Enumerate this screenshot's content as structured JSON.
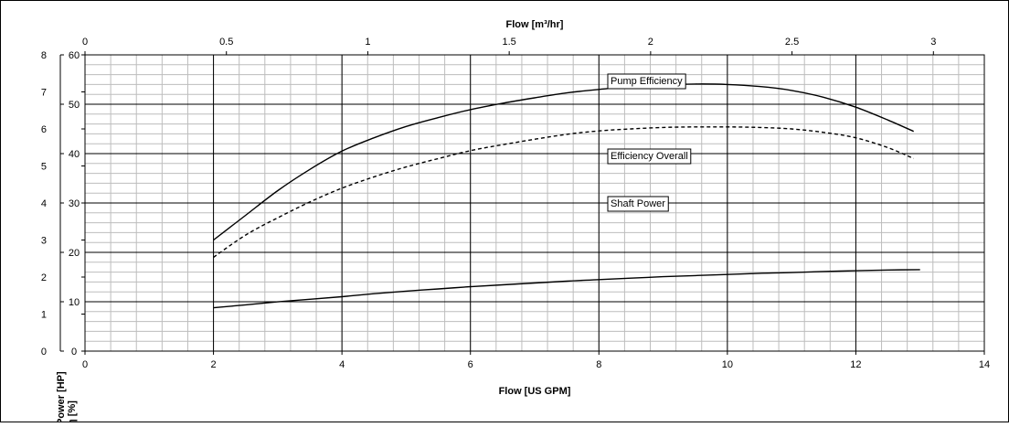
{
  "chart_data": {
    "type": "line",
    "title": "",
    "x_axis_bottom": {
      "label": "Flow [US GPM]",
      "range": [
        0,
        14
      ],
      "ticks": [
        "0",
        "2",
        "4",
        "6",
        "8",
        "10",
        "12",
        "14"
      ]
    },
    "x_axis_top": {
      "label": "Flow [m³/hr]",
      "range": [
        0,
        3.18
      ],
      "ticks": [
        "0",
        "0.5",
        "1",
        "1.5",
        "2",
        "2.5",
        "3"
      ]
    },
    "y_axis_power": {
      "label": "Power [HP]",
      "range": [
        0,
        8
      ],
      "ticks": [
        "0",
        "1",
        "2",
        "3",
        "4",
        "5",
        "6",
        "7",
        "8"
      ]
    },
    "y_axis_efficiency": {
      "label": "η [%]",
      "range": [
        0,
        60
      ],
      "ticks": [
        "0",
        "10",
        "20",
        "30",
        "40",
        "50",
        "60"
      ]
    },
    "grid": true,
    "series": [
      {
        "name": "Pump Efficiency",
        "axis": "efficiency",
        "style": "solid",
        "x": [
          2.0,
          2.5,
          3.0,
          3.5,
          4.0,
          4.5,
          5.0,
          5.5,
          6.0,
          6.5,
          7.0,
          7.5,
          8.0,
          8.5,
          9.0,
          9.5,
          10.0,
          10.5,
          11.0,
          11.5,
          12.0,
          12.5,
          12.9
        ],
        "y": [
          22.5,
          27.5,
          32.5,
          36.8,
          40.5,
          43.2,
          45.5,
          47.3,
          48.9,
          50.2,
          51.3,
          52.3,
          53.0,
          53.5,
          53.9,
          54.1,
          54.0,
          53.6,
          52.8,
          51.4,
          49.4,
          46.8,
          44.5
        ]
      },
      {
        "name": "Efficiency Overall",
        "axis": "efficiency",
        "style": "dashed",
        "x": [
          2.0,
          2.5,
          3.0,
          3.5,
          4.0,
          4.5,
          5.0,
          5.5,
          6.0,
          6.5,
          7.0,
          7.5,
          8.0,
          8.5,
          9.0,
          9.5,
          10.0,
          10.5,
          11.0,
          11.5,
          12.0,
          12.5,
          12.9
        ],
        "y": [
          19.0,
          23.5,
          27.0,
          30.2,
          33.0,
          35.3,
          37.3,
          39.0,
          40.6,
          41.8,
          42.9,
          43.9,
          44.6,
          45.0,
          45.3,
          45.4,
          45.4,
          45.3,
          45.0,
          44.3,
          43.2,
          41.2,
          39.0
        ]
      },
      {
        "name": "Shaft Power",
        "axis": "power",
        "style": "solid",
        "x": [
          2.0,
          2.5,
          3.0,
          3.5,
          4.0,
          4.5,
          5.0,
          5.5,
          6.0,
          6.5,
          7.0,
          7.5,
          8.0,
          8.5,
          9.0,
          9.5,
          10.0,
          10.5,
          11.0,
          11.5,
          12.0,
          12.5,
          13.0
        ],
        "y": [
          1.17,
          1.25,
          1.33,
          1.4,
          1.47,
          1.55,
          1.62,
          1.68,
          1.74,
          1.79,
          1.84,
          1.89,
          1.93,
          1.97,
          2.01,
          2.04,
          2.07,
          2.1,
          2.12,
          2.15,
          2.17,
          2.19,
          2.2
        ]
      }
    ],
    "annotations": [
      {
        "text": "Pump Efficiency",
        "series": "Pump Efficiency"
      },
      {
        "text": "Efficiency Overall",
        "series": "Efficiency Overall"
      },
      {
        "text": "Shaft Power",
        "series": "Shaft Power"
      }
    ]
  }
}
